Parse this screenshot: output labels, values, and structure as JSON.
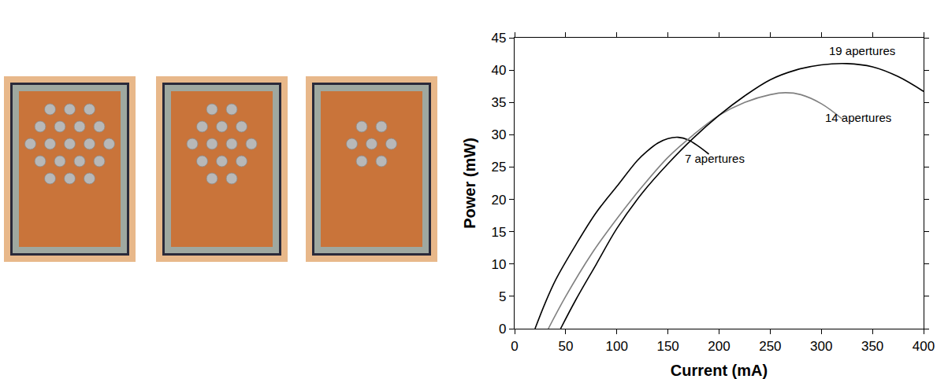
{
  "chart_data": {
    "type": "line",
    "x_label": "Current (mA)",
    "y_label": "Power (mW)",
    "xlim": [
      0,
      400
    ],
    "xticks": [
      0,
      50,
      100,
      150,
      200,
      250,
      300,
      350,
      400
    ],
    "ylim": [
      0,
      45
    ],
    "yticks": [
      0,
      5,
      10,
      15,
      20,
      25,
      30,
      35,
      40,
      45
    ],
    "grid": false,
    "series": [
      {
        "name": "7 apertures",
        "color": "#000000",
        "x": [
          20,
          30,
          40,
          60,
          80,
          100,
          120,
          130,
          140,
          150,
          160,
          170,
          180,
          190
        ],
        "values": [
          0,
          4,
          7.5,
          13,
          18,
          22,
          26,
          27.5,
          28.7,
          29.4,
          29.6,
          29.2,
          28.2,
          27
        ]
      },
      {
        "name": "14 apertures",
        "color": "#808080",
        "x": [
          33,
          50,
          75,
          100,
          125,
          150,
          175,
          200,
          225,
          250,
          265,
          280,
          300,
          320
        ],
        "values": [
          0,
          5,
          11.5,
          17,
          22,
          26.5,
          30,
          33,
          35,
          36.2,
          36.5,
          36.2,
          34.8,
          32.5
        ]
      },
      {
        "name": "19 apertures",
        "color": "#000000",
        "x": [
          45,
          60,
          80,
          100,
          125,
          150,
          175,
          200,
          225,
          250,
          275,
          300,
          325,
          350,
          375,
          400
        ],
        "values": [
          0,
          4.5,
          10,
          15.5,
          21,
          25.5,
          29.5,
          33,
          36,
          38.5,
          40,
          40.8,
          41,
          40.5,
          39,
          36.7
        ]
      }
    ]
  }
}
